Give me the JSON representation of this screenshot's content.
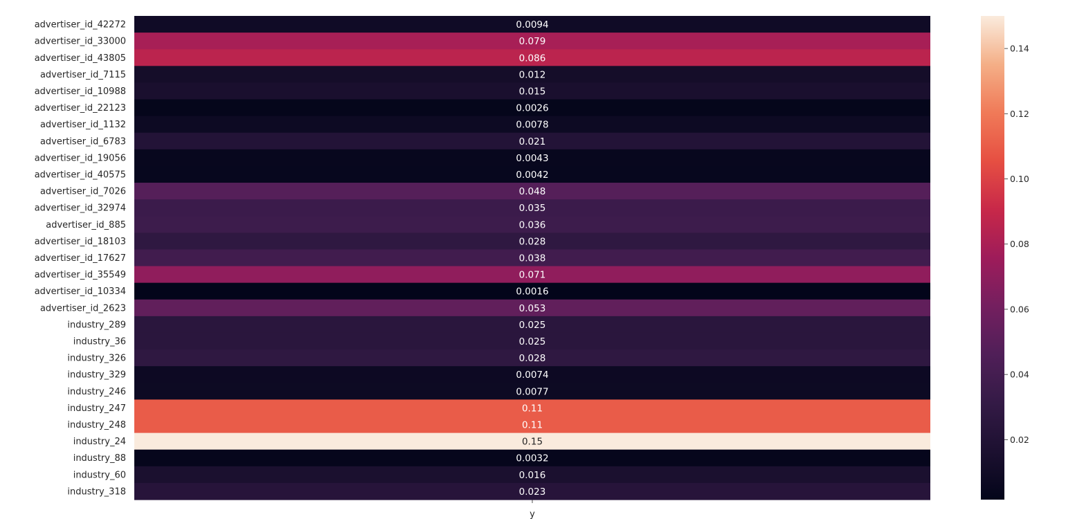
{
  "chart_data": {
    "type": "heatmap",
    "title": "",
    "xlabel": "",
    "ylabel": "",
    "x_categories": [
      "y"
    ],
    "rows": [
      {
        "label": "advertiser_id_42272",
        "value": 0.0094,
        "text": "0.0094"
      },
      {
        "label": "advertiser_id_33000",
        "value": 0.079,
        "text": "0.079"
      },
      {
        "label": "advertiser_id_43805",
        "value": 0.086,
        "text": "0.086"
      },
      {
        "label": "advertiser_id_7115",
        "value": 0.012,
        "text": "0.012"
      },
      {
        "label": "advertiser_id_10988",
        "value": 0.015,
        "text": "0.015"
      },
      {
        "label": "advertiser_id_22123",
        "value": 0.0026,
        "text": "0.0026"
      },
      {
        "label": "advertiser_id_1132",
        "value": 0.0078,
        "text": "0.0078"
      },
      {
        "label": "advertiser_id_6783",
        "value": 0.021,
        "text": "0.021"
      },
      {
        "label": "advertiser_id_19056",
        "value": 0.0043,
        "text": "0.0043"
      },
      {
        "label": "advertiser_id_40575",
        "value": 0.0042,
        "text": "0.0042"
      },
      {
        "label": "advertiser_id_7026",
        "value": 0.048,
        "text": "0.048"
      },
      {
        "label": "advertiser_id_32974",
        "value": 0.035,
        "text": "0.035"
      },
      {
        "label": "advertiser_id_885",
        "value": 0.036,
        "text": "0.036"
      },
      {
        "label": "advertiser_id_18103",
        "value": 0.028,
        "text": "0.028"
      },
      {
        "label": "advertiser_id_17627",
        "value": 0.038,
        "text": "0.038"
      },
      {
        "label": "advertiser_id_35549",
        "value": 0.071,
        "text": "0.071"
      },
      {
        "label": "advertiser_id_10334",
        "value": 0.0016,
        "text": "0.0016"
      },
      {
        "label": "advertiser_id_2623",
        "value": 0.053,
        "text": "0.053"
      },
      {
        "label": "industry_289",
        "value": 0.025,
        "text": "0.025"
      },
      {
        "label": "industry_36",
        "value": 0.025,
        "text": "0.025"
      },
      {
        "label": "industry_326",
        "value": 0.028,
        "text": "0.028"
      },
      {
        "label": "industry_329",
        "value": 0.0074,
        "text": "0.0074"
      },
      {
        "label": "industry_246",
        "value": 0.0077,
        "text": "0.0077"
      },
      {
        "label": "industry_247",
        "value": 0.11,
        "text": "0.11"
      },
      {
        "label": "industry_248",
        "value": 0.11,
        "text": "0.11"
      },
      {
        "label": "industry_24",
        "value": 0.15,
        "text": "0.15"
      },
      {
        "label": "industry_88",
        "value": 0.0032,
        "text": "0.0032"
      },
      {
        "label": "industry_60",
        "value": 0.016,
        "text": "0.016"
      },
      {
        "label": "industry_318",
        "value": 0.023,
        "text": "0.023"
      }
    ],
    "colormap": "rocket",
    "colorbar": {
      "range": [
        0.0016,
        0.15
      ],
      "ticks": [
        {
          "value": 0.02,
          "text": "0.02"
        },
        {
          "value": 0.04,
          "text": "0.04"
        },
        {
          "value": 0.06,
          "text": "0.06"
        },
        {
          "value": 0.08,
          "text": "0.08"
        },
        {
          "value": 0.1,
          "text": "0.10"
        },
        {
          "value": 0.12,
          "text": "0.12"
        },
        {
          "value": 0.14,
          "text": "0.14"
        }
      ]
    },
    "grid": false,
    "legend": "colorbar-right"
  }
}
